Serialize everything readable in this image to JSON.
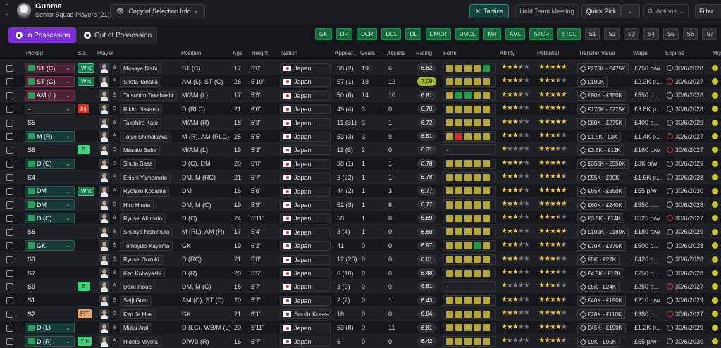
{
  "header": {
    "club_name": "Gunma",
    "squad_subtitle": "Senior Squad Players (21)",
    "view_selector": "Copy of Selection Info",
    "tactics_label": "Tactics",
    "hold_meeting_label": "Hold Team Meeting",
    "quick_pick_label": "Quick Pick",
    "actions_label": "Actions",
    "filter_label": "Filter"
  },
  "possession": {
    "in_label": "In Possession",
    "out_label": "Out of Possession"
  },
  "position_chips": [
    {
      "label": "GK",
      "filled": true
    },
    {
      "label": "DR",
      "filled": true
    },
    {
      "label": "DCR",
      "filled": true
    },
    {
      "label": "DCL",
      "filled": true
    },
    {
      "label": "DL",
      "filled": true
    },
    {
      "label": "DMCR",
      "filled": true
    },
    {
      "label": "DMCL",
      "filled": true
    },
    {
      "label": "MR",
      "filled": true
    },
    {
      "label": "AML",
      "filled": true
    },
    {
      "label": "STCR",
      "filled": true
    },
    {
      "label": "STCL",
      "filled": true
    },
    {
      "label": "S1",
      "filled": false
    },
    {
      "label": "S2",
      "filled": false
    },
    {
      "label": "S3",
      "filled": false
    },
    {
      "label": "S4",
      "filled": false
    },
    {
      "label": "S5",
      "filled": false
    },
    {
      "label": "S6",
      "filled": false
    },
    {
      "label": "S7",
      "filled": false
    },
    {
      "label": "S8",
      "filled": false
    }
  ],
  "columns": {
    "picked": "Picked",
    "status": "Sta.",
    "player": "Player",
    "position": "Position",
    "age": "Age",
    "height": "Height",
    "nation": "Nation",
    "appearances": "Appear...",
    "goals": "Goals",
    "assists": "Assists",
    "rating": "Rating",
    "form": "Form",
    "ability": "Ability",
    "potential": "Potential",
    "transfer_value": "Transfer Value",
    "wage": "Wage",
    "expires": "Expires",
    "morale": "Mor"
  },
  "players": [
    {
      "picked": "ST (C)",
      "pk": "att",
      "status": "Wnt",
      "st": "wnt",
      "name": "Masaya Nishi",
      "position": "ST (C)",
      "age": "17",
      "height": "5'6\"",
      "nation": "Japan",
      "apps": "58 (2)",
      "goals": "19",
      "assists": "6",
      "rating": "6.82",
      "hi": false,
      "form": "yyyyg",
      "ability": 3.5,
      "potential": 5,
      "tv": "£275K - £475K",
      "wage": "£750 p/w",
      "expires": "30/6/2028",
      "clock": "grey"
    },
    {
      "picked": "ST (C)",
      "pk": "att",
      "status": "Wnt",
      "st": "wnt",
      "name": "Shota Tanaka",
      "position": "AM (L), ST (C)",
      "age": "26",
      "height": "5'10\"",
      "nation": "Japan",
      "apps": "57 (1)",
      "goals": "18",
      "assists": "12",
      "rating": "7.09",
      "hi": true,
      "form": "yyyyy",
      "ability": 3.5,
      "potential": 3.5,
      "tv": "£100K",
      "wage": "£2.3K p...",
      "expires": "30/6/2027",
      "clock": "red"
    },
    {
      "picked": "AM (L)",
      "pk": "att",
      "status": "",
      "st": "",
      "name": "Tatsuhiro Takahashi",
      "position": "M/AM (L)",
      "age": "17",
      "height": "5'5\"",
      "nation": "Japan",
      "apps": "50 (6)",
      "goals": "14",
      "assists": "10",
      "rating": "6.81",
      "hi": false,
      "form": "yggyy",
      "ability": 3.5,
      "potential": 5,
      "tv": "£90K - £550K",
      "wage": "£550 p...",
      "expires": "30/6/2028",
      "clock": "grey"
    },
    {
      "picked": "-",
      "pk": "none",
      "status": "Inj",
      "st": "inj",
      "name": "Rikiru Nakano",
      "position": "D (RLC)",
      "age": "21",
      "height": "6'0\"",
      "nation": "Japan",
      "apps": "49 (4)",
      "goals": "3",
      "assists": "0",
      "rating": "6.70",
      "hi": false,
      "form": "yyyyy",
      "ability": 3,
      "potential": 4.5,
      "tv": "£170K - £275K",
      "wage": "£3.8K p...",
      "expires": "30/6/2028",
      "clock": "grey"
    },
    {
      "picked": "S5",
      "pk": "res",
      "status": "",
      "st": "",
      "name": "Takahiro Kato",
      "position": "M/AM (R)",
      "age": "18",
      "height": "5'3\"",
      "nation": "Japan",
      "apps": "11 (31)",
      "goals": "3",
      "assists": "1",
      "rating": "6.72",
      "hi": false,
      "form": "yyyyy",
      "ability": 3,
      "potential": 5,
      "tv": "£80K - £275K",
      "wage": "£400 p...",
      "expires": "30/6/2029",
      "clock": "grey"
    },
    {
      "picked": "M (R)",
      "pk": "def",
      "status": "",
      "st": "",
      "name": "Taiyo Shimokawa",
      "position": "M (R), AM (RLC)",
      "age": "25",
      "height": "5'5\"",
      "nation": "Japan",
      "apps": "53 (3)",
      "goals": "3",
      "assists": "9",
      "rating": "6.51",
      "hi": false,
      "form": "yryyy",
      "ability": 3,
      "potential": 3.5,
      "tv": "£1.5K - £3K",
      "wage": "£1.4K p...",
      "expires": "30/6/2027",
      "clock": "red"
    },
    {
      "picked": "S8",
      "pk": "res",
      "status": "B",
      "st": "b",
      "name": "Masato Baba",
      "position": "M/AM (L)",
      "age": "18",
      "height": "5'3\"",
      "nation": "Japan",
      "apps": "11 (8)",
      "goals": "2",
      "assists": "0",
      "rating": "6.31",
      "hi": false,
      "form": "-",
      "ability": 1,
      "potential": 3.5,
      "tv": "£3.5K - £12K",
      "wage": "£160 p/w",
      "expires": "30/6/2027",
      "clock": "red"
    },
    {
      "picked": "D (C)",
      "pk": "def",
      "status": "",
      "st": "",
      "name": "Shuta Sasa",
      "position": "D (C), DM",
      "age": "20",
      "height": "6'0\"",
      "nation": "Japan",
      "apps": "38 (1)",
      "goals": "1",
      "assists": "1",
      "rating": "6.78",
      "hi": false,
      "form": "yyyyy",
      "ability": 3.5,
      "potential": 4.5,
      "tv": "£350K - £550K",
      "wage": "£3K p/w",
      "expires": "30/6/2029",
      "clock": "grey"
    },
    {
      "picked": "S4",
      "pk": "res",
      "status": "",
      "st": "",
      "name": "Enishi Yamamoto",
      "position": "DM, M (RC)",
      "age": "21",
      "height": "5'7\"",
      "nation": "Japan",
      "apps": "3 (22)",
      "goals": "1",
      "assists": "1",
      "rating": "6.78",
      "hi": false,
      "form": "yyyyy",
      "ability": 3,
      "potential": 4.5,
      "tv": "£55K - £90K",
      "wage": "£1.6K p...",
      "expires": "30/6/2028",
      "clock": "grey"
    },
    {
      "picked": "DM",
      "pk": "def",
      "status": "Wnt",
      "st": "wnt",
      "name": "Ryotaro Kodama",
      "position": "DM",
      "age": "16",
      "height": "5'6\"",
      "nation": "Japan",
      "apps": "44 (2)",
      "goals": "1",
      "assists": "3",
      "rating": "6.77",
      "hi": false,
      "form": "yyyyy",
      "ability": 3.5,
      "potential": 5,
      "tv": "£65K - £550K",
      "wage": "£55 p/w",
      "expires": "30/6/2030",
      "clock": "grey"
    },
    {
      "picked": "DM",
      "pk": "def",
      "status": "",
      "st": "",
      "name": "Hiro Hirota",
      "position": "DM, M (C)",
      "age": "19",
      "height": "5'9\"",
      "nation": "Japan",
      "apps": "52 (3)",
      "goals": "1",
      "assists": "6",
      "rating": "6.77",
      "hi": false,
      "form": "yyyyy",
      "ability": 3,
      "potential": 5,
      "tv": "£60K - £240K",
      "wage": "£850 p...",
      "expires": "30/6/2028",
      "clock": "grey"
    },
    {
      "picked": "D (C)",
      "pk": "def",
      "status": "",
      "st": "",
      "name": "Ryusei Akimoto",
      "position": "D (C)",
      "age": "24",
      "height": "5'11\"",
      "nation": "Japan",
      "apps": "58",
      "goals": "1",
      "assists": "0",
      "rating": "6.69",
      "hi": false,
      "form": "yyyyy",
      "ability": 3,
      "potential": 3.5,
      "tv": "£3.5K - £14K",
      "wage": "£525 p/w",
      "expires": "30/6/2027",
      "clock": "red"
    },
    {
      "picked": "S6",
      "pk": "res",
      "status": "",
      "st": "",
      "name": "Shunya Nishimura",
      "position": "M (RL), AM (R)",
      "age": "17",
      "height": "5'4\"",
      "nation": "Japan",
      "apps": "3 (4)",
      "goals": "1",
      "assists": "0",
      "rating": "6.60",
      "hi": false,
      "form": "yyyyy",
      "ability": 3,
      "potential": 5,
      "tv": "£100K - £180K",
      "wage": "£180 p/w",
      "expires": "30/6/2029",
      "clock": "grey"
    },
    {
      "picked": "GK",
      "pk": "def",
      "status": "",
      "st": "",
      "name": "Tomoyuki Kayama",
      "position": "GK",
      "age": "19",
      "height": "6'2\"",
      "nation": "Japan",
      "apps": "41",
      "goals": "0",
      "assists": "0",
      "rating": "6.97",
      "hi": false,
      "form": "yyygy",
      "ability": 3,
      "potential": 4.5,
      "tv": "£70K - £275K",
      "wage": "£500 p...",
      "expires": "30/6/2028",
      "clock": "grey"
    },
    {
      "picked": "S3",
      "pk": "res",
      "status": "",
      "st": "",
      "name": "Ryusei Suzuki",
      "position": "D (RC)",
      "age": "21",
      "height": "5'8\"",
      "nation": "Japan",
      "apps": "12 (26)",
      "goals": "0",
      "assists": "0",
      "rating": "6.61",
      "hi": false,
      "form": "yyyyy",
      "ability": 3,
      "potential": 3.5,
      "tv": "£5K - £22K",
      "wage": "£420 p...",
      "expires": "30/6/2028",
      "clock": "grey"
    },
    {
      "picked": "S7",
      "pk": "res",
      "status": "",
      "st": "",
      "name": "Ken Kobayashi",
      "position": "D (R)",
      "age": "20",
      "height": "5'5\"",
      "nation": "Japan",
      "apps": "6 (10)",
      "goals": "0",
      "assists": "0",
      "rating": "6.48",
      "hi": false,
      "form": "yyyyy",
      "ability": 3,
      "potential": 3.5,
      "tv": "£4.5K - £12K",
      "wage": "£250 p...",
      "expires": "30/6/2028",
      "clock": "grey"
    },
    {
      "picked": "S9",
      "pk": "res",
      "status": "B",
      "st": "b",
      "name": "Daiki Inoue",
      "position": "DM, M (C)",
      "age": "18",
      "height": "5'7\"",
      "nation": "Japan",
      "apps": "3 (9)",
      "goals": "0",
      "assists": "0",
      "rating": "6.61",
      "hi": false,
      "form": "-",
      "ability": 1,
      "potential": 3.5,
      "tv": "£5K - £24K",
      "wage": "£250 p...",
      "expires": "30/6/2027",
      "clock": "red"
    },
    {
      "picked": "S1",
      "pk": "res",
      "status": "",
      "st": "",
      "name": "Seiji Goto",
      "position": "AM (C), ST (C)",
      "age": "20",
      "height": "5'7\"",
      "nation": "Japan",
      "apps": "2 (7)",
      "goals": "0",
      "assists": "1",
      "rating": "6.43",
      "hi": false,
      "form": "yyyyy",
      "ability": 3,
      "potential": 4.5,
      "tv": "£40K - £190K",
      "wage": "£210 p/w",
      "expires": "30/6/2029",
      "clock": "grey"
    },
    {
      "picked": "S2",
      "pk": "res",
      "status": "FIT",
      "st": "fit",
      "name": "Kim Je Hee",
      "position": "GK",
      "age": "21",
      "height": "6'1\"",
      "nation": "South Korea",
      "apps": "16",
      "goals": "0",
      "assists": "0",
      "rating": "6.84",
      "hi": false,
      "form": "yyyyy",
      "ability": 3,
      "potential": 4,
      "tv": "£28K - £110K",
      "wage": "£380 p...",
      "expires": "30/6/2027",
      "clock": "red"
    },
    {
      "picked": "D (L)",
      "pk": "def",
      "status": "",
      "st": "",
      "name": "Muku Arai",
      "position": "D (LC), WB/M (L)",
      "age": "20",
      "height": "5'11\"",
      "nation": "Japan",
      "apps": "53 (8)",
      "goals": "0",
      "assists": "11",
      "rating": "6.81",
      "hi": false,
      "form": "yyyyy",
      "ability": 3,
      "potential": 4,
      "tv": "£45K - £190K",
      "wage": "£1.2K p...",
      "expires": "30/6/2029",
      "clock": "grey"
    },
    {
      "picked": "D (R)",
      "pk": "def",
      "status": "Yth",
      "st": "yth",
      "name": "Hideto Miyota",
      "position": "D/WB (R)",
      "age": "16",
      "height": "5'7\"",
      "nation": "Japan",
      "apps": "6",
      "goals": "0",
      "assists": "0",
      "rating": "6.42",
      "hi": false,
      "form": "yyyyy",
      "ability": 1.5,
      "potential": 4.5,
      "tv": "£9K - £95K",
      "wage": "£55 p/w",
      "expires": "30/6/2030",
      "clock": "grey"
    }
  ]
}
